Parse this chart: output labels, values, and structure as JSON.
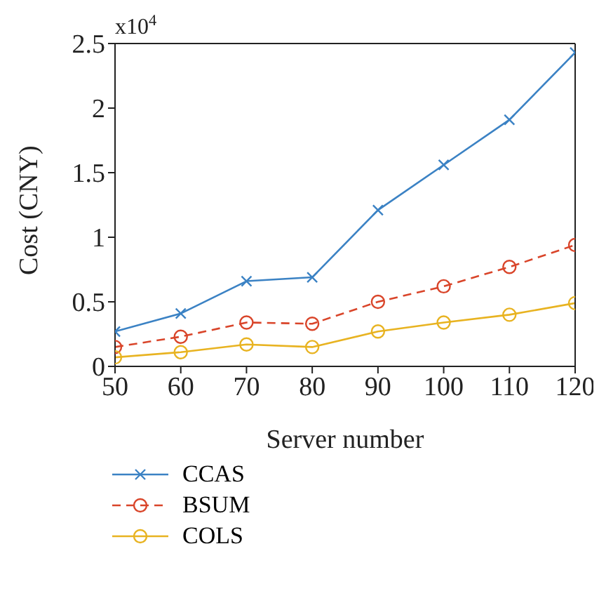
{
  "chart_data": {
    "type": "line",
    "xlabel": "Server number",
    "ylabel": "Cost (CNY)",
    "annotations": [
      "x10$^{4}$"
    ],
    "x": [
      50,
      60,
      70,
      80,
      90,
      100,
      110,
      120
    ],
    "series": [
      {
        "name": "CCAS",
        "color": "#3b82c4",
        "marker": "cross",
        "line_style": "solid",
        "values": [
          0.27,
          0.41,
          0.66,
          0.69,
          1.21,
          1.56,
          1.91,
          2.43
        ]
      },
      {
        "name": "BSUM",
        "color": "#d9452a",
        "marker": "circle",
        "line_style": "dashed",
        "values": [
          0.15,
          0.23,
          0.34,
          0.33,
          0.5,
          0.62,
          0.77,
          0.94
        ]
      },
      {
        "name": "COLS",
        "color": "#e8b321",
        "marker": "circle",
        "line_style": "solid",
        "values": [
          0.07,
          0.11,
          0.17,
          0.15,
          0.27,
          0.34,
          0.4,
          0.49
        ]
      }
    ],
    "xlim": [
      50,
      120
    ],
    "xticks": [
      50,
      60,
      70,
      80,
      90,
      100,
      110,
      120
    ],
    "ylim": [
      0,
      2.5
    ],
    "yticks": [
      0,
      0.5,
      1,
      1.5,
      2,
      2.5
    ],
    "grid": false,
    "legend": "bottom"
  }
}
